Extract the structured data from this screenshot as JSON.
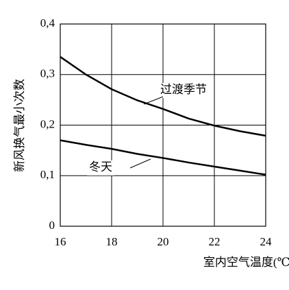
{
  "chart_data": {
    "type": "line",
    "x_label": "室内空气温度(℃)",
    "y_label": "新风换气最小次数",
    "x": [
      16,
      17,
      18,
      19,
      20,
      21,
      22,
      23,
      24
    ],
    "series": [
      {
        "name": "过渡季节",
        "color": "#000000",
        "values": [
          0.335,
          0.3,
          0.271,
          0.249,
          0.232,
          0.213,
          0.199,
          0.188,
          0.179
        ]
      },
      {
        "name": "冬天",
        "color": "#000000",
        "values": [
          0.17,
          0.161,
          0.153,
          0.143,
          0.135,
          0.126,
          0.118,
          0.11,
          0.102
        ]
      }
    ],
    "xlim": [
      16,
      24
    ],
    "xticks": [
      16,
      18,
      20,
      22,
      24
    ],
    "ylim": [
      0,
      0.4
    ],
    "yticks": [
      0,
      {
        "value": 0.1,
        "label": "0,1"
      },
      {
        "value": 0.2,
        "label": "0,2"
      },
      {
        "value": 0.3,
        "label": "0,3"
      },
      {
        "value": 0.4,
        "label": "0,4"
      }
    ],
    "grid": true
  }
}
